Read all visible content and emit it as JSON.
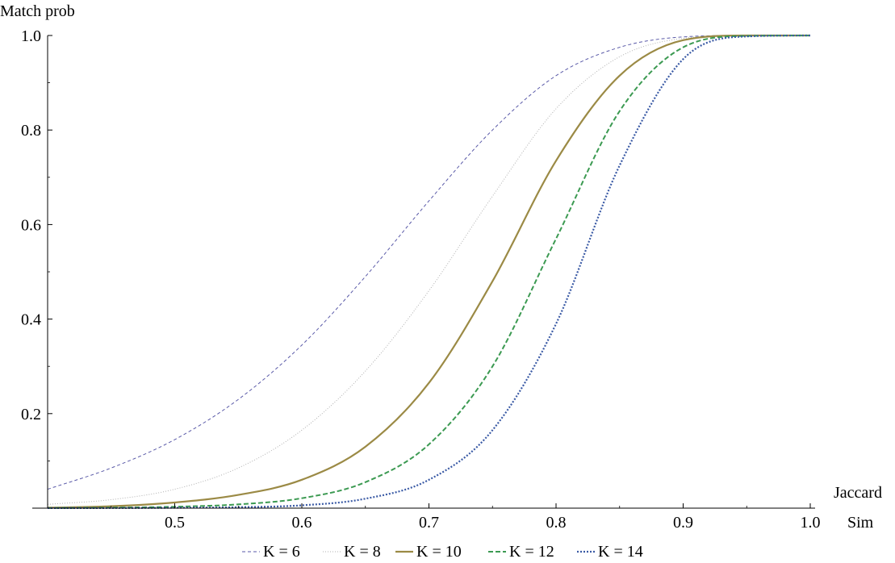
{
  "chart_data": {
    "type": "line",
    "title": "",
    "ylabel": "Match prob",
    "xlabel_lines": [
      "Jaccard",
      "Sim"
    ],
    "xlim": [
      0.4,
      1.0
    ],
    "ylim": [
      0,
      1.0
    ],
    "xticks": [
      0.5,
      0.6,
      0.7,
      0.8,
      0.9,
      1.0
    ],
    "xtick_labels": [
      "0.5",
      "0.6",
      "0.7",
      "0.8",
      "0.9",
      "1.0"
    ],
    "yticks": [
      0.2,
      0.4,
      0.6,
      0.8,
      1.0
    ],
    "ytick_labels": [
      "0.2",
      "0.4",
      "0.6",
      "0.8",
      "1.0"
    ],
    "grid": false,
    "legend_position": "bottom-center",
    "x": [
      0.4,
      0.45,
      0.5,
      0.55,
      0.6,
      0.65,
      0.7,
      0.75,
      0.8,
      0.85,
      0.9,
      0.95,
      1.0
    ],
    "series": [
      {
        "name": "K = 6",
        "color": "#5a5aa8",
        "style": "dashed-fine",
        "values": [
          0.04,
          0.085,
          0.145,
          0.23,
          0.345,
          0.49,
          0.65,
          0.8,
          0.915,
          0.975,
          0.997,
          1.0,
          1.0
        ]
      },
      {
        "name": "K = 8",
        "color": "#b0b0b0",
        "style": "dotted-fine",
        "values": [
          0.008,
          0.018,
          0.04,
          0.085,
          0.165,
          0.29,
          0.46,
          0.66,
          0.845,
          0.955,
          0.994,
          1.0,
          1.0
        ]
      },
      {
        "name": "K = 10",
        "color": "#9b8a45",
        "style": "solid",
        "values": [
          0.001,
          0.004,
          0.012,
          0.028,
          0.06,
          0.13,
          0.265,
          0.48,
          0.735,
          0.915,
          0.99,
          1.0,
          1.0
        ]
      },
      {
        "name": "K = 12",
        "color": "#3c9a52",
        "style": "dashed",
        "values": [
          0.0003,
          0.001,
          0.003,
          0.008,
          0.021,
          0.055,
          0.135,
          0.3,
          0.57,
          0.84,
          0.975,
          0.999,
          1.0
        ]
      },
      {
        "name": "K = 14",
        "color": "#3a5aa5",
        "style": "dotted",
        "values": [
          0.0001,
          0.0003,
          0.0008,
          0.002,
          0.006,
          0.02,
          0.06,
          0.165,
          0.39,
          0.725,
          0.95,
          0.998,
          1.0
        ]
      }
    ]
  }
}
